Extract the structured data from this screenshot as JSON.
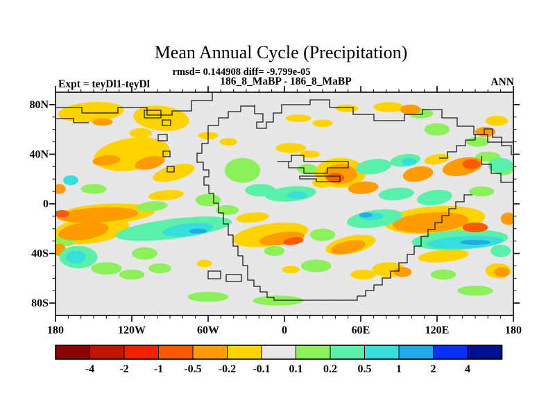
{
  "chart_data": {
    "type": "heatmap",
    "subtype": "filled-contour-world-map",
    "title": "Mean Annual Cycle (Precipitation)",
    "stats_line": "rmsd= 0.144908 diff= -9.799e-05",
    "comparison_line": "186_8_MaBP - 186_8_MaBP",
    "experiment_label": "Expt = teyDl1-teyDl",
    "season_label": "ANN",
    "x_axis": {
      "tick_labels": [
        "180",
        "120W",
        "60W",
        "0",
        "60E",
        "120E",
        "180"
      ],
      "tick_lons": [
        -180,
        -120,
        -60,
        0,
        60,
        120,
        180
      ],
      "minor_step_deg": 10,
      "range": [
        -180,
        180
      ]
    },
    "y_axis": {
      "tick_labels": [
        "80N",
        "40N",
        "0",
        "40S",
        "80S"
      ],
      "tick_lats": [
        80,
        40,
        0,
        -40,
        -80
      ],
      "minor_step_deg": 10,
      "range": [
        -90,
        90
      ]
    },
    "colorbar": {
      "boundary_labels": [
        "-4",
        "-2",
        "-1",
        "-0.5",
        "-0.2",
        "-0.1",
        "0.1",
        "0.2",
        "0.5",
        "1",
        "2",
        "4"
      ],
      "colors": [
        "#8B0000",
        "#C41400",
        "#F81E00",
        "#FF5A00",
        "#FF9C00",
        "#FFD300",
        "#E8E8E8",
        "#8CF05A",
        "#5AF0AA",
        "#35E0DC",
        "#1FAAE8",
        "#0A32FF",
        "#000F96"
      ],
      "neutral_color": "#E8E8E8"
    },
    "map_background": "#E7E7E7",
    "coastline_color": "#1a1a1a",
    "level_bins": {
      "-3": "-1 to -0.5",
      "-2": "-0.5 to -0.2",
      "-1": "-0.2 to -0.1",
      "1": "0.1 to 0.2",
      "2": "0.2 to 0.5",
      "3": "0.5 to 1",
      "4": "1 to 2"
    },
    "anomaly_regions_format": [
      "lon",
      "lat",
      "rx_deg",
      "ry_deg",
      "rotation_deg",
      "level_bin"
    ],
    "anomaly_regions": [
      [
        -152,
        74,
        26,
        8,
        -4,
        -1
      ],
      [
        -143,
        66,
        8,
        3,
        0,
        -2
      ],
      [
        -97,
        69,
        22,
        10,
        6,
        -1
      ],
      [
        -113,
        57,
        9,
        4,
        0,
        -1
      ],
      [
        -120,
        40,
        30,
        13,
        -8,
        -1
      ],
      [
        -140,
        35,
        11,
        4,
        -6,
        -2
      ],
      [
        -106,
        33,
        12,
        5,
        -12,
        -2
      ],
      [
        -87,
        25,
        17,
        6,
        -15,
        -1
      ],
      [
        -60,
        55,
        8,
        3,
        0,
        -1
      ],
      [
        -44,
        50,
        7,
        3,
        0,
        -1
      ],
      [
        -25,
        -11,
        13,
        4,
        -5,
        -1
      ],
      [
        -11,
        -25,
        30,
        9,
        -8,
        -1
      ],
      [
        -2,
        -28,
        18,
        5,
        -8,
        -2
      ],
      [
        7,
        -30,
        8,
        3,
        -8,
        -3
      ],
      [
        -140,
        -8,
        38,
        8,
        -3,
        -1
      ],
      [
        -147,
        -9,
        32,
        6,
        -3,
        -2
      ],
      [
        -175,
        -8,
        6,
        3,
        0,
        -3
      ],
      [
        -152,
        -21,
        30,
        11,
        -8,
        -1
      ],
      [
        -158,
        -22,
        20,
        7,
        -8,
        -2
      ],
      [
        -177,
        -37,
        5,
        5,
        0,
        -2
      ],
      [
        -177,
        12,
        5,
        4,
        0,
        -2
      ],
      [
        -93,
        7,
        14,
        4,
        -5,
        -1
      ],
      [
        44,
        25,
        20,
        12,
        0,
        -1
      ],
      [
        44,
        24,
        13,
        8,
        0,
        -2
      ],
      [
        40,
        21,
        7,
        4,
        0,
        -3
      ],
      [
        62,
        13,
        12,
        5,
        -5,
        -2
      ],
      [
        30,
        17,
        8,
        4,
        0,
        -1
      ],
      [
        20,
        40,
        8,
        3,
        0,
        -1
      ],
      [
        5,
        45,
        12,
        4,
        0,
        -1
      ],
      [
        49,
        77,
        9,
        3,
        0,
        -1
      ],
      [
        11,
        69,
        10,
        3,
        0,
        -1
      ],
      [
        30,
        65,
        8,
        3,
        0,
        -1
      ],
      [
        105,
        24,
        12,
        6,
        -10,
        -2
      ],
      [
        140,
        30,
        16,
        7,
        -12,
        -2
      ],
      [
        147,
        32,
        7,
        4,
        0,
        -3
      ],
      [
        120,
        36,
        10,
        4,
        -10,
        -1
      ],
      [
        82,
        78,
        12,
        4,
        0,
        -1
      ],
      [
        99,
        76,
        8,
        4,
        0,
        -2
      ],
      [
        158,
        58,
        8,
        4,
        0,
        -2
      ],
      [
        167,
        67,
        9,
        4,
        0,
        -1
      ],
      [
        118,
        -13,
        40,
        11,
        -4,
        -1
      ],
      [
        115,
        -15,
        30,
        8,
        -4,
        -2
      ],
      [
        150,
        -19,
        10,
        4,
        0,
        -3
      ],
      [
        176,
        -12,
        6,
        5,
        0,
        -2
      ],
      [
        125,
        -42,
        20,
        5,
        -5,
        -1
      ],
      [
        82,
        -53,
        13,
        6,
        0,
        -1
      ],
      [
        93,
        -55,
        7,
        4,
        0,
        -2
      ],
      [
        168,
        -54,
        10,
        6,
        0,
        -1
      ],
      [
        171,
        -55,
        6,
        4,
        0,
        -2
      ],
      [
        62,
        -57,
        10,
        4,
        0,
        -1
      ],
      [
        52,
        -33,
        20,
        7,
        -12,
        -1
      ],
      [
        50,
        -35,
        14,
        5,
        -12,
        -2
      ],
      [
        -63,
        -48,
        6,
        3,
        0,
        -1
      ],
      [
        5,
        -53,
        7,
        3,
        0,
        -1
      ],
      [
        -168,
        19,
        6,
        4,
        0,
        3
      ],
      [
        -150,
        12,
        10,
        4,
        0,
        1
      ],
      [
        -87,
        -20,
        46,
        8,
        -7,
        2
      ],
      [
        -76,
        -21,
        20,
        5,
        -7,
        3
      ],
      [
        -68,
        -22,
        7,
        2,
        0,
        4
      ],
      [
        -104,
        -2,
        12,
        4,
        -5,
        1
      ],
      [
        -60,
        3,
        10,
        5,
        0,
        1
      ],
      [
        -33,
        27,
        14,
        10,
        0,
        1
      ],
      [
        -19,
        11,
        12,
        5,
        0,
        2
      ],
      [
        5,
        8,
        20,
        6,
        -5,
        2
      ],
      [
        10,
        7,
        8,
        3,
        0,
        3
      ],
      [
        -162,
        -43,
        15,
        9,
        0,
        2
      ],
      [
        -164,
        -43,
        8,
        5,
        0,
        3
      ],
      [
        -140,
        -52,
        12,
        5,
        0,
        1
      ],
      [
        -120,
        -57,
        10,
        4,
        0,
        1
      ],
      [
        -110,
        -40,
        10,
        5,
        0,
        1
      ],
      [
        -98,
        -52,
        9,
        4,
        0,
        1
      ],
      [
        -60,
        -75,
        16,
        4,
        0,
        1
      ],
      [
        -5,
        -78,
        20,
        4,
        0,
        1
      ],
      [
        25,
        -50,
        12,
        5,
        0,
        1
      ],
      [
        30,
        -25,
        10,
        5,
        0,
        1
      ],
      [
        -8,
        -38,
        8,
        4,
        0,
        1
      ],
      [
        71,
        -12,
        22,
        7,
        -8,
        2
      ],
      [
        68,
        -10,
        10,
        3,
        0,
        3
      ],
      [
        64,
        -9,
        5,
        2,
        0,
        4
      ],
      [
        70,
        30,
        14,
        6,
        -8,
        2
      ],
      [
        95,
        35,
        12,
        5,
        -8,
        2
      ],
      [
        98,
        34,
        6,
        3,
        0,
        3
      ],
      [
        160,
        38,
        10,
        4,
        0,
        1
      ],
      [
        172,
        28,
        8,
        5,
        0,
        1
      ],
      [
        170,
        31,
        10,
        6,
        0,
        2
      ],
      [
        120,
        60,
        10,
        5,
        0,
        1
      ],
      [
        152,
        50,
        9,
        4,
        0,
        1
      ],
      [
        107,
        73,
        10,
        4,
        0,
        1
      ],
      [
        138,
        -29,
        38,
        8,
        -3,
        2
      ],
      [
        142,
        -31,
        30,
        5,
        -3,
        3
      ],
      [
        150,
        -31,
        12,
        2,
        0,
        4
      ],
      [
        170,
        -38,
        8,
        5,
        0,
        2
      ],
      [
        125,
        -57,
        10,
        4,
        0,
        1
      ],
      [
        150,
        -70,
        14,
        4,
        0,
        1
      ],
      [
        88,
        8,
        14,
        5,
        -5,
        2
      ],
      [
        118,
        5,
        14,
        6,
        -8,
        2
      ],
      [
        155,
        10,
        10,
        4,
        0,
        1
      ],
      [
        -172,
        -30,
        8,
        4,
        0,
        1
      ],
      [
        18,
        28,
        8,
        4,
        0,
        1
      ],
      [
        -45,
        -5,
        9,
        4,
        0,
        1
      ]
    ]
  }
}
